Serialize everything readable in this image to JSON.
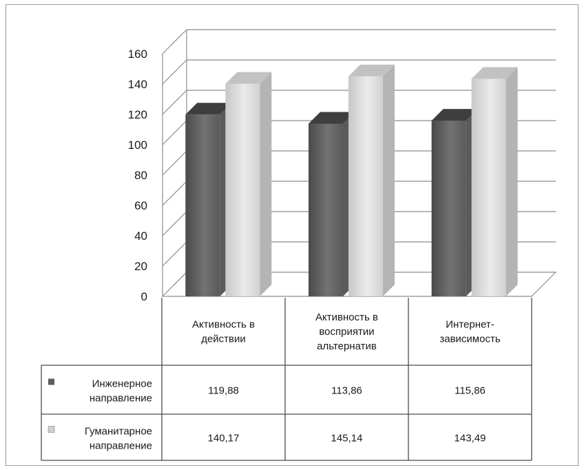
{
  "chart_data": {
    "type": "bar",
    "title": "",
    "xlabel": "",
    "ylabel": "",
    "ylim": [
      0,
      160
    ],
    "yticks": [
      0,
      20,
      40,
      60,
      80,
      100,
      120,
      140,
      160
    ],
    "grid": true,
    "style": "3d-clustered-column-with-data-table",
    "categories": [
      [
        "Активность в",
        "действии"
      ],
      [
        "Активность в",
        "восприятии",
        "альтернатив"
      ],
      [
        "Интернет-",
        "зависимость"
      ]
    ],
    "series": [
      {
        "name": [
          "Инженерное",
          "направление"
        ],
        "values": [
          119.88,
          113.86,
          115.86
        ],
        "labels": [
          "119,88",
          "113,86",
          "115,86"
        ],
        "color": "#6b6b6b"
      },
      {
        "name": [
          "Гуманитарное",
          "направление"
        ],
        "values": [
          140.17,
          145.14,
          143.49
        ],
        "labels": [
          "140,17",
          "145,14",
          "143,49"
        ],
        "color": "#d4d4d4"
      }
    ]
  }
}
